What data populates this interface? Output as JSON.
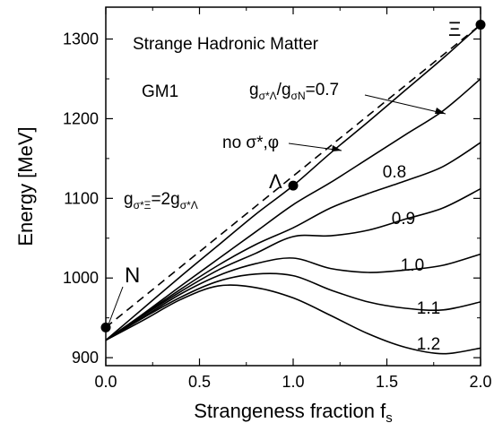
{
  "chart_data": {
    "type": "line",
    "title": "Strange Hadronic Matter",
    "model": "GM1",
    "xlabel_main": "Strangeness fraction f",
    "xlabel_sub": "s",
    "ylabel": "Energy [MeV]",
    "xlim": [
      0.0,
      2.0
    ],
    "ylim": [
      890,
      1340
    ],
    "x_ticks": [
      "0.0",
      "0.5",
      "1.0",
      "1.5",
      "2.0"
    ],
    "y_ticks": [
      "900",
      "1000",
      "1100",
      "1200",
      "1300"
    ],
    "x_tick_values": [
      0.0,
      0.5,
      1.0,
      1.5,
      2.0
    ],
    "y_tick_values": [
      900,
      1000,
      1100,
      1200,
      1300
    ],
    "coupling_annotation": "gσ*Ξ=2gσ*Λ",
    "ratio_annotation": "gσ*Λ/gσN=0.7",
    "no_meson_annotation": "no σ*,φ",
    "dashed_line": {
      "x": [
        0.0,
        2.0
      ],
      "y": [
        938,
        1318
      ]
    },
    "points": [
      {
        "label": "N",
        "x": 0.0,
        "y": 938
      },
      {
        "label": "Λ",
        "x": 1.0,
        "y": 1116
      },
      {
        "label": "Ξ",
        "x": 2.0,
        "y": 1318
      }
    ],
    "series": [
      {
        "name": "no σ*,φ",
        "x": [
          0.0,
          0.2,
          0.4,
          0.6,
          0.8,
          1.0,
          1.2,
          1.4,
          1.6,
          1.8,
          2.0
        ],
        "y": [
          922,
          962,
          1002,
          1041,
          1080,
          1116,
          1157,
          1196,
          1236,
          1276,
          1318
        ]
      },
      {
        "name": "0.7",
        "x": [
          0.0,
          0.2,
          0.4,
          0.6,
          0.8,
          1.0,
          1.2,
          1.4,
          1.6,
          1.8,
          2.0
        ],
        "y": [
          922,
          955,
          990,
          1024,
          1058,
          1092,
          1120,
          1150,
          1180,
          1210,
          1250
        ]
      },
      {
        "name": "0.8",
        "x": [
          0.0,
          0.2,
          0.4,
          0.6,
          0.8,
          1.0,
          1.2,
          1.4,
          1.6,
          1.8,
          2.0
        ],
        "y": [
          922,
          954,
          986,
          1016,
          1042,
          1063,
          1088,
          1106,
          1122,
          1140,
          1170
        ]
      },
      {
        "name": "0.9",
        "x": [
          0.0,
          0.2,
          0.4,
          0.6,
          0.8,
          1.0,
          1.2,
          1.4,
          1.6,
          1.8,
          2.0
        ],
        "y": [
          922,
          953,
          983,
          1010,
          1031,
          1052,
          1053,
          1060,
          1074,
          1088,
          1112
        ]
      },
      {
        "name": "1.0",
        "x": [
          0.0,
          0.2,
          0.4,
          0.6,
          0.8,
          1.0,
          1.2,
          1.4,
          1.6,
          1.8,
          2.0
        ],
        "y": [
          922,
          951,
          980,
          1003,
          1018,
          1025,
          1012,
          1007,
          1010,
          1016,
          1030
        ]
      },
      {
        "name": "1.1",
        "x": [
          0.0,
          0.2,
          0.4,
          0.6,
          0.8,
          1.0,
          1.2,
          1.4,
          1.6,
          1.8,
          2.0
        ],
        "y": [
          922,
          950,
          976,
          996,
          1005,
          1003,
          985,
          970,
          962,
          960,
          970
        ]
      },
      {
        "name": "1.2",
        "x": [
          0.0,
          0.2,
          0.4,
          0.6,
          0.8,
          1.0,
          1.2,
          1.4,
          1.6,
          1.8,
          2.0
        ],
        "y": [
          922,
          947,
          973,
          990,
          988,
          975,
          953,
          930,
          913,
          905,
          912
        ]
      }
    ],
    "curve_labels": [
      "0.8",
      "0.9",
      "1.0",
      "1.1",
      "1.2"
    ]
  }
}
